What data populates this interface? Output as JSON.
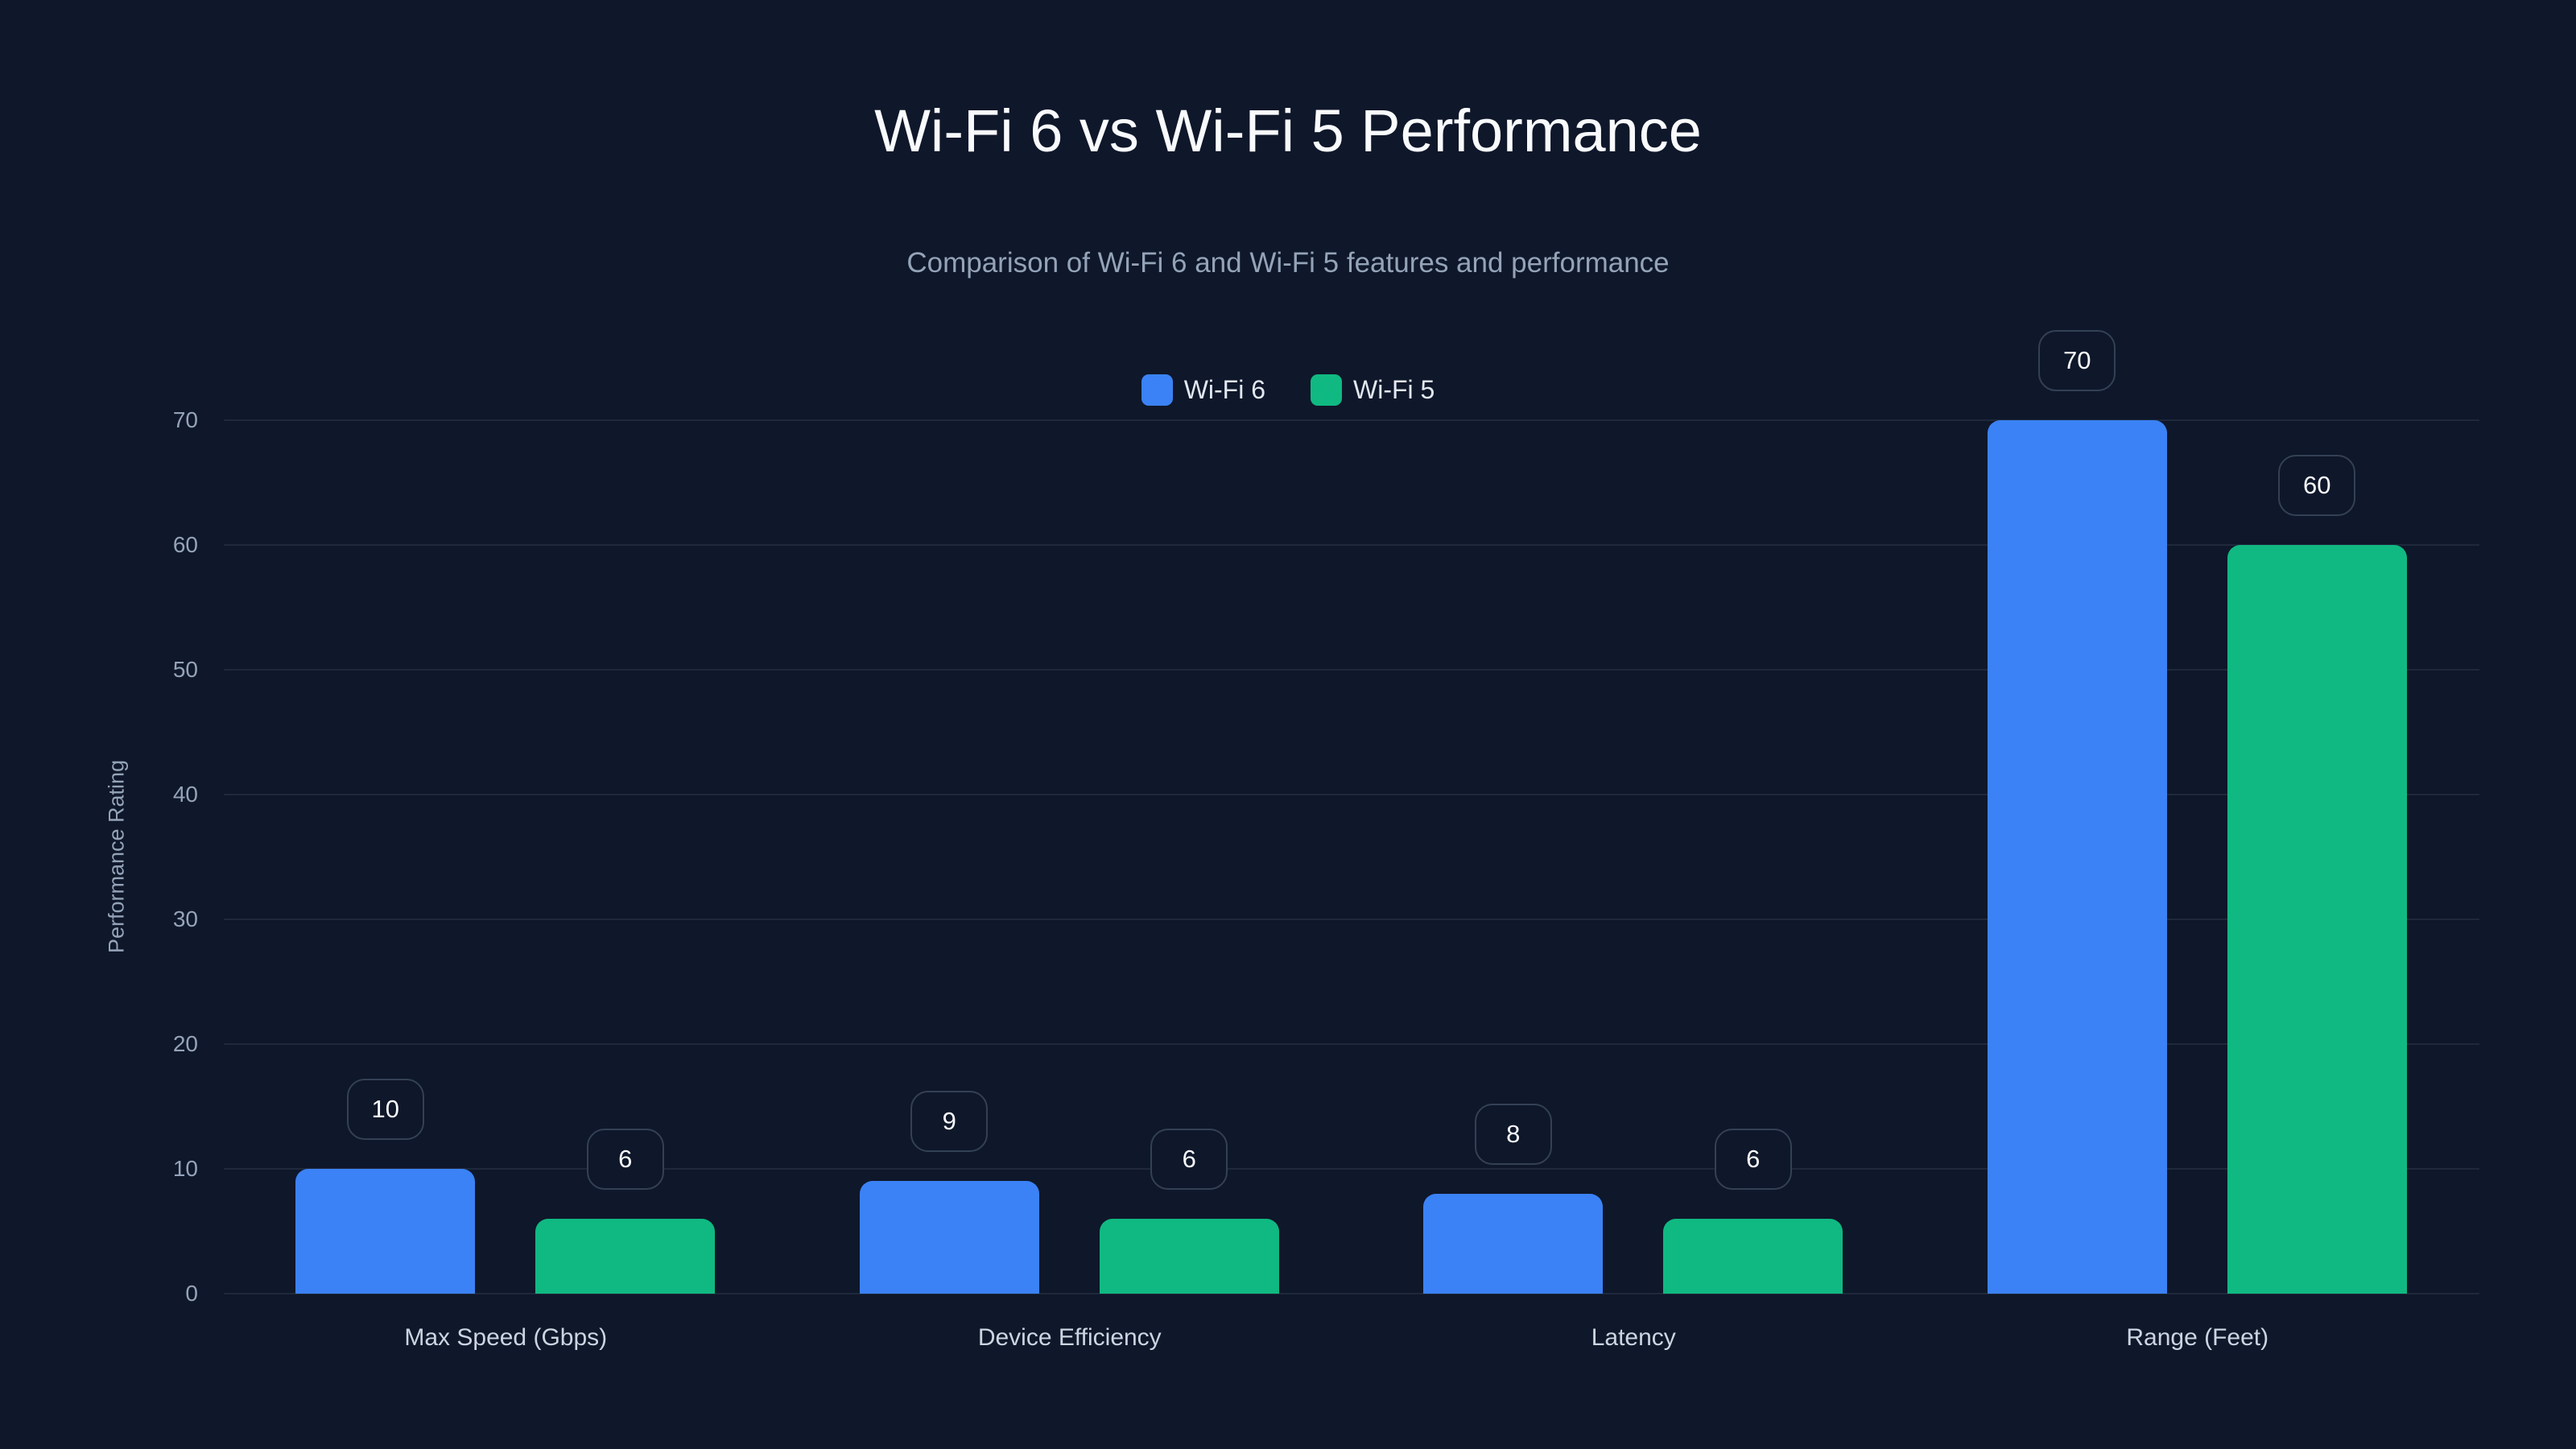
{
  "header": {
    "title": "Wi-Fi 6 vs Wi-Fi 5 Performance",
    "subtitle": "Comparison of Wi-Fi 6 and Wi-Fi 5 features and performance"
  },
  "legend": [
    {
      "label": "Wi-Fi 6",
      "color": "#3b82f6"
    },
    {
      "label": "Wi-Fi 5",
      "color": "#10b981"
    }
  ],
  "axis": {
    "ylabel": "Performance Rating",
    "ticks": [
      "0",
      "10",
      "20",
      "30",
      "40",
      "50",
      "60",
      "70"
    ]
  },
  "chart_data": {
    "type": "bar",
    "title": "Wi-Fi 6 vs Wi-Fi 5 Performance",
    "subtitle": "Comparison of Wi-Fi 6 and Wi-Fi 5 features and performance",
    "categories": [
      "Max Speed (Gbps)",
      "Device Efficiency",
      "Latency",
      "Range (Feet)"
    ],
    "series": [
      {
        "name": "Wi-Fi 6",
        "color": "#3b82f6",
        "values": [
          10,
          9,
          8,
          70
        ]
      },
      {
        "name": "Wi-Fi 5",
        "color": "#10b981",
        "values": [
          6,
          6,
          6,
          60
        ]
      }
    ],
    "xlabel": "",
    "ylabel": "Performance Rating",
    "ylim": [
      0,
      70
    ],
    "yticks": [
      0,
      10,
      20,
      30,
      40,
      50,
      60,
      70
    ],
    "grid": true,
    "legend_position": "top-center",
    "data_labels": true
  }
}
